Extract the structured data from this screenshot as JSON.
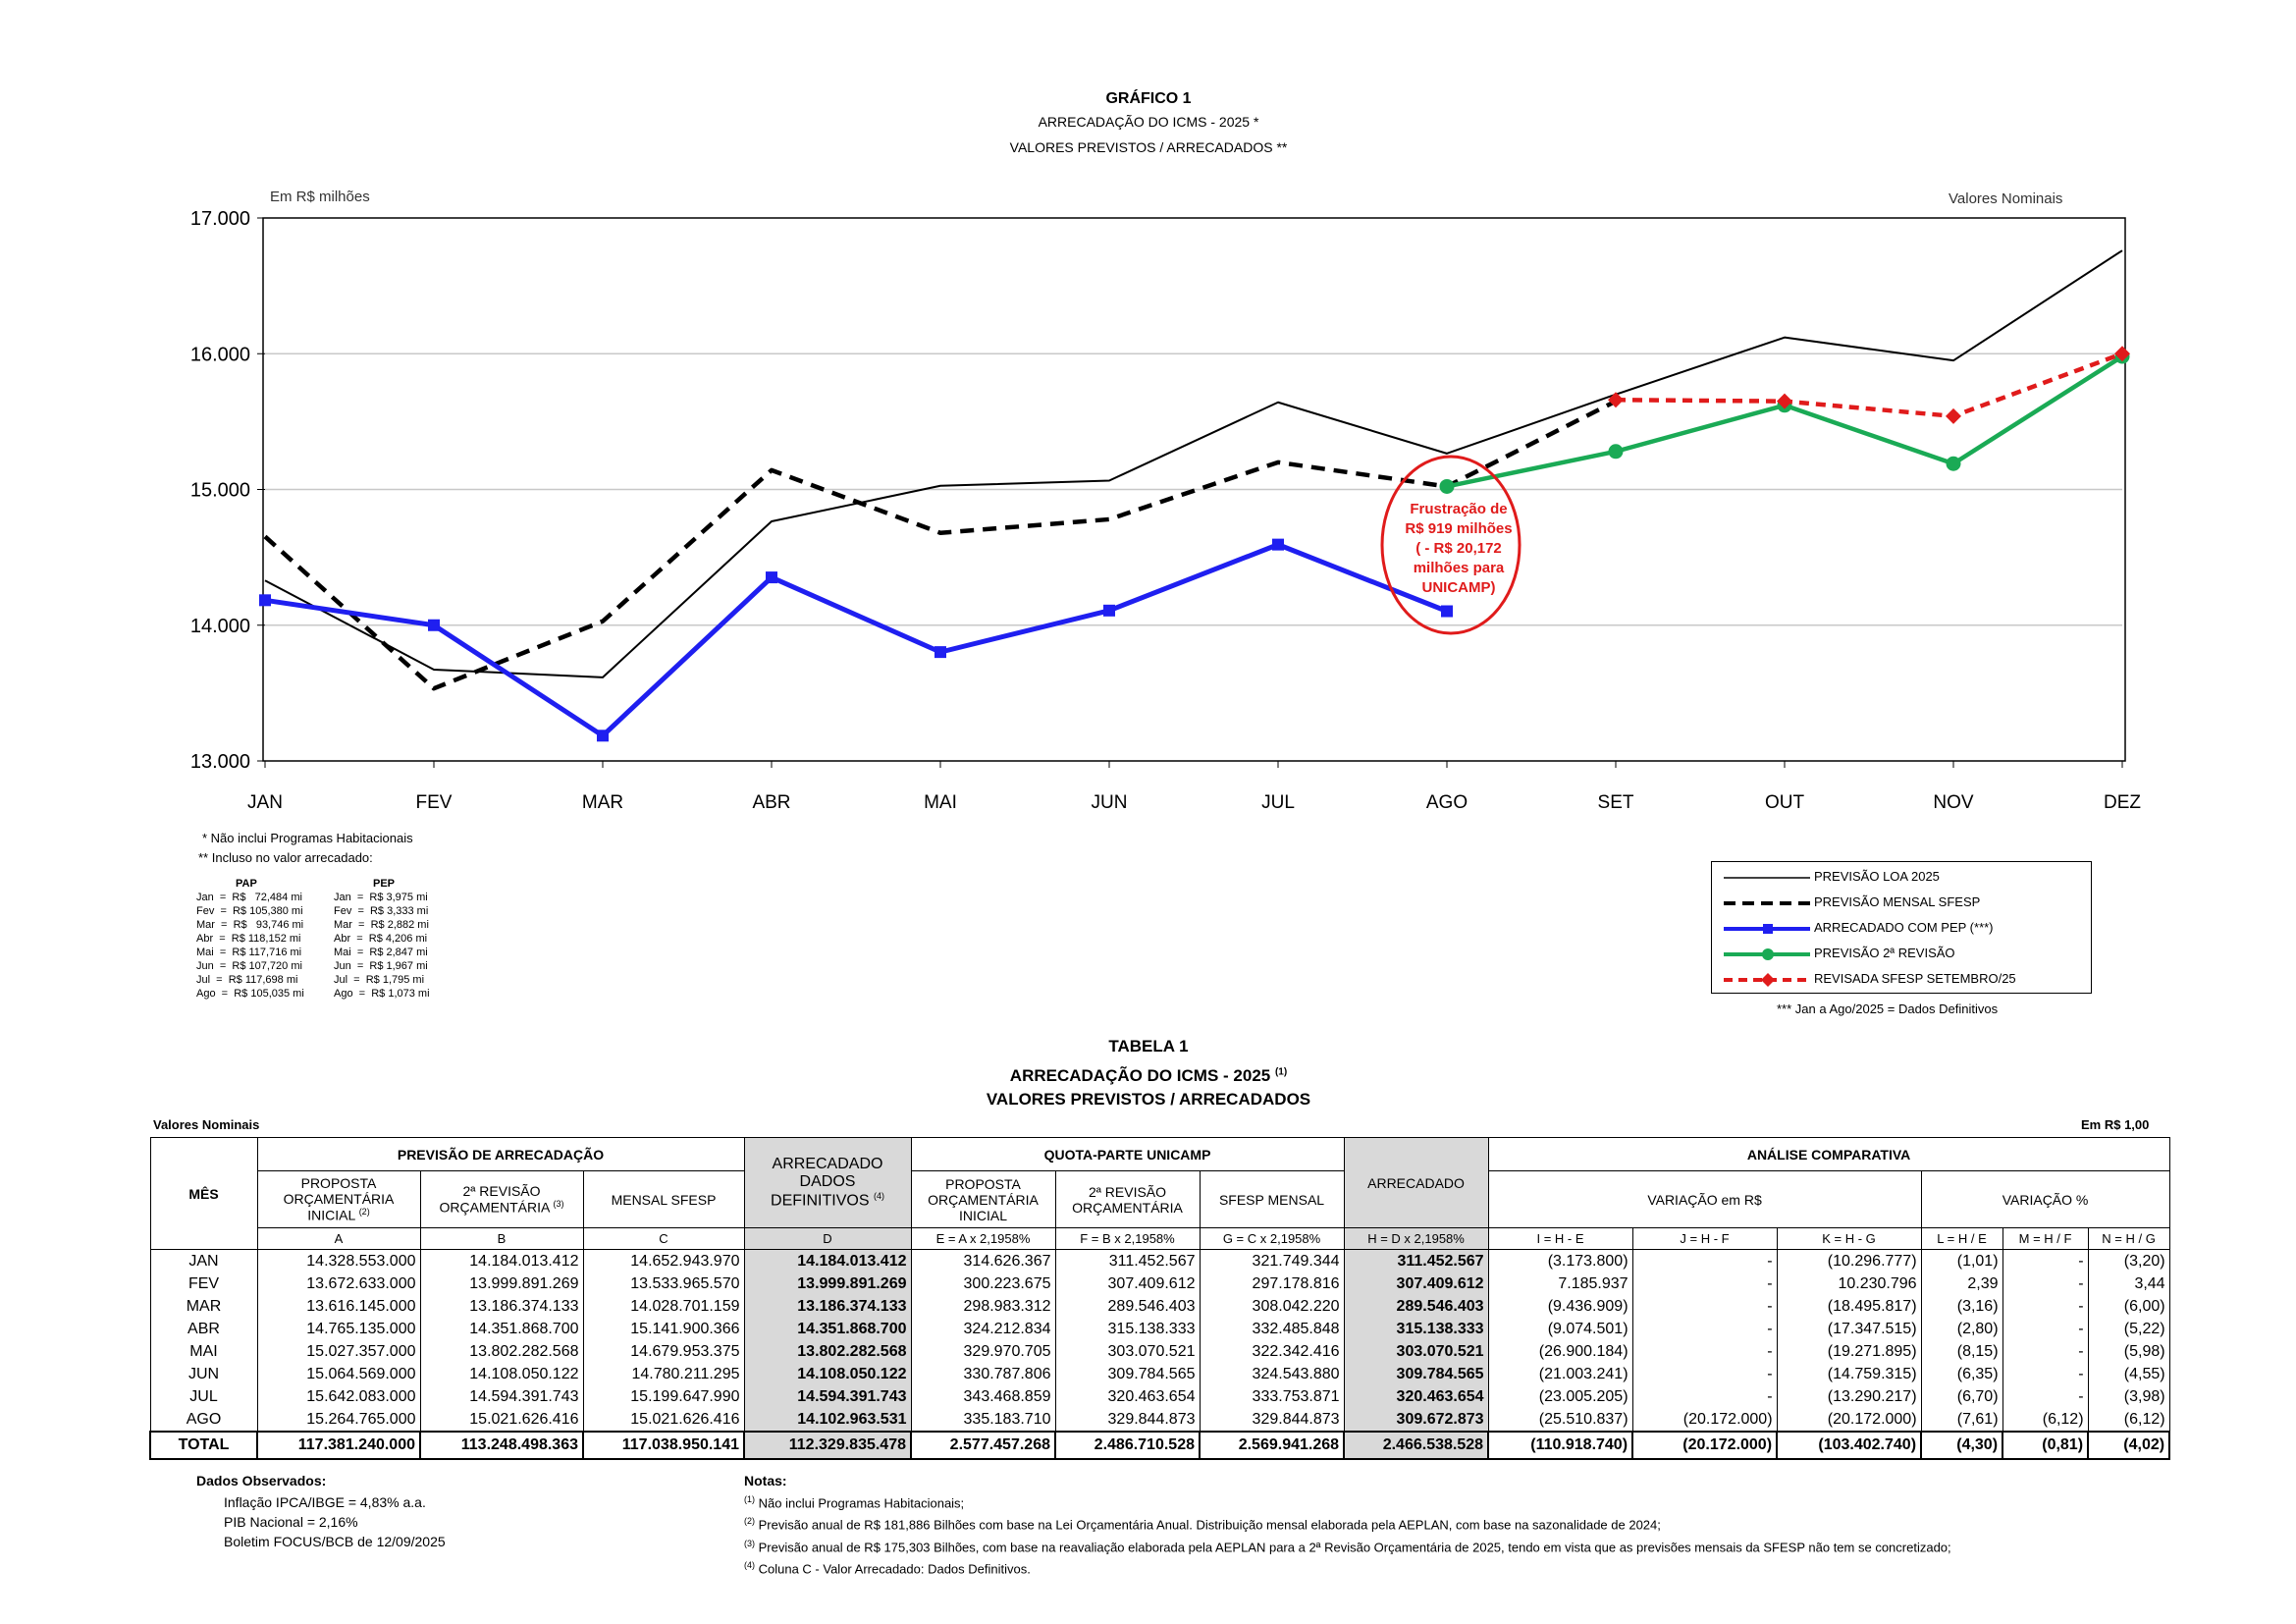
{
  "header": {
    "chart_number": "GRÁFICO 1",
    "chart_title": "ARRECADAÇÃO DO ICMS - 2025 *",
    "chart_subtitle": "VALORES PREVISTOS / ARRECADADOS **",
    "unit_left": "Em R$ milhões",
    "unit_right": "Valores Nominais"
  },
  "colors": {
    "loa": "#000000",
    "sfesp": "#000000",
    "arrecadado": "#1f1ff0",
    "revisao2": "#1aaa55",
    "revisada": "#e01b1b",
    "annotation": "#e01b1b"
  },
  "chart_data": {
    "type": "line",
    "title": "ARRECADAÇÃO DO ICMS - 2025 *",
    "ylabel": "Em R$ milhões",
    "ylim": [
      13000,
      17000
    ],
    "yticks": [
      13000,
      14000,
      15000,
      16000,
      17000
    ],
    "ytick_labels": [
      "13.000",
      "14.000",
      "15.000",
      "16.000",
      "17.000"
    ],
    "categories": [
      "JAN",
      "FEV",
      "MAR",
      "ABR",
      "MAI",
      "JUN",
      "JUL",
      "AGO",
      "SET",
      "OUT",
      "NOV",
      "DEZ"
    ],
    "legend_position": "bottom-right",
    "series": [
      {
        "name": "PREVISÃO LOA 2025",
        "style": "solid-thin",
        "values": [
          14329,
          13673,
          13616,
          14765,
          15027,
          15065,
          15642,
          15265,
          15700,
          16120,
          15950,
          16760
        ]
      },
      {
        "name": "PREVISÃO MENSAL SFESP",
        "style": "dashed",
        "values": [
          14653,
          13534,
          14029,
          15142,
          14680,
          14780,
          15200,
          15022,
          15650,
          null,
          null,
          null
        ]
      },
      {
        "name": "ARRECADADO COM PEP (***)",
        "style": "blue-square",
        "values": [
          14184,
          14000,
          13186,
          14352,
          13802,
          14108,
          14594,
          14103,
          null,
          null,
          null,
          null
        ]
      },
      {
        "name": "PREVISÃO 2ª REVISÃO",
        "style": "green-circle",
        "values": [
          null,
          null,
          null,
          null,
          null,
          null,
          null,
          15022,
          15280,
          15620,
          15190,
          15980
        ]
      },
      {
        "name": "REVISADA SFESP SETEMBRO/25",
        "style": "red-dashed-diamond",
        "values": [
          null,
          null,
          null,
          null,
          null,
          null,
          null,
          null,
          15660,
          15650,
          15540,
          16000
        ]
      }
    ],
    "annotation": [
      "Frustração de",
      "R$ 919 milhões",
      "( - R$ 20,172",
      "milhões para",
      "UNICAMP)"
    ]
  },
  "legend_note": "***  Jan a Ago/2025 = Dados Definitivos",
  "footnotes": {
    "fn1": "* Não inclui Programas Habitacionais",
    "fn2": "** Incluso no valor arrecadado:",
    "pap_title": "PAP",
    "pep_title": "PEP",
    "pap": [
      "Jan  =  R$   72,484 mi",
      "Fev  =  R$ 105,380 mi",
      "Mar  =  R$   93,746 mi",
      "Abr  =  R$ 118,152 mi",
      "Mai  =  R$ 117,716 mi",
      "Jun  =  R$ 107,720 mi",
      "Jul  =  R$ 117,698 mi",
      "Ago  =  R$ 105,035 mi"
    ],
    "pep": [
      "Jan  =  R$ 3,975 mi",
      "Fev  =  R$ 3,333 mi",
      "Mar  =  R$ 2,882 mi",
      "Abr  =  R$ 4,206 mi",
      "Mai  =  R$ 2,847 mi",
      "Jun  =  R$ 1,967 mi",
      "Jul  =  R$ 1,795 mi",
      "Ago  =  R$ 1,073 mi"
    ]
  },
  "table": {
    "number": "TABELA 1",
    "title": "ARRECADAÇÃO DO ICMS - 2025",
    "title_sup": "(1)",
    "subtitle": "VALORES PREVISTOS / ARRECADADOS",
    "left_label": "Valores Nominais",
    "right_label": "Em R$ 1,00",
    "headers": {
      "mes": "MÊS",
      "previsao": "PREVISÃO DE ARRECADAÇÃO",
      "proposta": "PROPOSTA ORÇAMENTÁRIA INICIAL",
      "proposta_sup": "(2)",
      "revisao": "2ª REVISÃO ORÇAMENTÁRIA",
      "revisao_sup": "(3)",
      "mensal": "MENSAL SFESP",
      "arrecadado_def": "ARRECADADO DADOS DEFINITIVOS",
      "arrecadado_def_sup": "(4)",
      "quota": "QUOTA-PARTE UNICAMP",
      "q_proposta": "PROPOSTA ORÇAMENTÁRIA INICIAL",
      "q_revisao": "2ª REVISÃO ORÇAMENTÁRIA",
      "q_sfesp": "SFESP MENSAL",
      "q_arrecadado": "ARRECADADO",
      "analise": "ANÁLISE COMPARATIVA",
      "variacao_rs": "VARIAÇÃO em R$",
      "variacao_pct": "VARIAÇÃO %",
      "letters": [
        "A",
        "B",
        "C",
        "D",
        "E = A x 2,1958%",
        "F = B x 2,1958%",
        "G = C x 2,1958%",
        "H = D x 2,1958%",
        "I = H - E",
        "J = H - F",
        "K = H - G",
        "L = H / E",
        "M = H / F",
        "N = H / G"
      ]
    },
    "rows": [
      [
        "JAN",
        "14.328.553.000",
        "14.184.013.412",
        "14.652.943.970",
        "14.184.013.412",
        "314.626.367",
        "311.452.567",
        "321.749.344",
        "311.452.567",
        "(3.173.800)",
        "-",
        "(10.296.777)",
        "(1,01)",
        "-",
        "(3,20)"
      ],
      [
        "FEV",
        "13.672.633.000",
        "13.999.891.269",
        "13.533.965.570",
        "13.999.891.269",
        "300.223.675",
        "307.409.612",
        "297.178.816",
        "307.409.612",
        "7.185.937",
        "-",
        "10.230.796",
        "2,39",
        "-",
        "3,44"
      ],
      [
        "MAR",
        "13.616.145.000",
        "13.186.374.133",
        "14.028.701.159",
        "13.186.374.133",
        "298.983.312",
        "289.546.403",
        "308.042.220",
        "289.546.403",
        "(9.436.909)",
        "-",
        "(18.495.817)",
        "(3,16)",
        "-",
        "(6,00)"
      ],
      [
        "ABR",
        "14.765.135.000",
        "14.351.868.700",
        "15.141.900.366",
        "14.351.868.700",
        "324.212.834",
        "315.138.333",
        "332.485.848",
        "315.138.333",
        "(9.074.501)",
        "-",
        "(17.347.515)",
        "(2,80)",
        "-",
        "(5,22)"
      ],
      [
        "MAI",
        "15.027.357.000",
        "13.802.282.568",
        "14.679.953.375",
        "13.802.282.568",
        "329.970.705",
        "303.070.521",
        "322.342.416",
        "303.070.521",
        "(26.900.184)",
        "-",
        "(19.271.895)",
        "(8,15)",
        "-",
        "(5,98)"
      ],
      [
        "JUN",
        "15.064.569.000",
        "14.108.050.122",
        "14.780.211.295",
        "14.108.050.122",
        "330.787.806",
        "309.784.565",
        "324.543.880",
        "309.784.565",
        "(21.003.241)",
        "-",
        "(14.759.315)",
        "(6,35)",
        "-",
        "(4,55)"
      ],
      [
        "JUL",
        "15.642.083.000",
        "14.594.391.743",
        "15.199.647.990",
        "14.594.391.743",
        "343.468.859",
        "320.463.654",
        "333.753.871",
        "320.463.654",
        "(23.005.205)",
        "-",
        "(13.290.217)",
        "(6,70)",
        "-",
        "(3,98)"
      ],
      [
        "AGO",
        "15.264.765.000",
        "15.021.626.416",
        "15.021.626.416",
        "14.102.963.531",
        "335.183.710",
        "329.844.873",
        "329.844.873",
        "309.672.873",
        "(25.510.837)",
        "(20.172.000)",
        "(20.172.000)",
        "(7,61)",
        "(6,12)",
        "(6,12)"
      ]
    ],
    "total": [
      "TOTAL",
      "117.381.240.000",
      "113.248.498.363",
      "117.038.950.141",
      "112.329.835.478",
      "2.577.457.268",
      "2.486.710.528",
      "2.569.941.268",
      "2.466.538.528",
      "(110.918.740)",
      "(20.172.000)",
      "(103.402.740)",
      "(4,30)",
      "(0,81)",
      "(4,02)"
    ]
  },
  "observed": {
    "title": "Dados Observados:",
    "lines": [
      "Inflação IPCA/IBGE = 4,83% a.a.",
      "PIB Nacional = 2,16%",
      "Boletim FOCUS/BCB de 12/09/2025"
    ]
  },
  "notes": {
    "title": "Notas:",
    "items": [
      {
        "sup": "(1)",
        "text": "Não inclui Programas Habitacionais;"
      },
      {
        "sup": "(2)",
        "text": "Previsão anual de R$ 181,886 Bilhões com base na Lei Orçamentária Anual. Distribuição mensal elaborada pela AEPLAN, com base na sazonalidade de 2024;"
      },
      {
        "sup": "(3)",
        "text": "Previsão anual de R$ 175,303 Bilhões, com base na reavaliação elaborada pela AEPLAN para a 2ª Revisão Orçamentária de 2025, tendo em vista que as previsões mensais da SFESP não tem se concretizado;"
      },
      {
        "sup": "(4)",
        "text": "Coluna C - Valor Arrecadado: Dados Definitivos."
      }
    ]
  }
}
